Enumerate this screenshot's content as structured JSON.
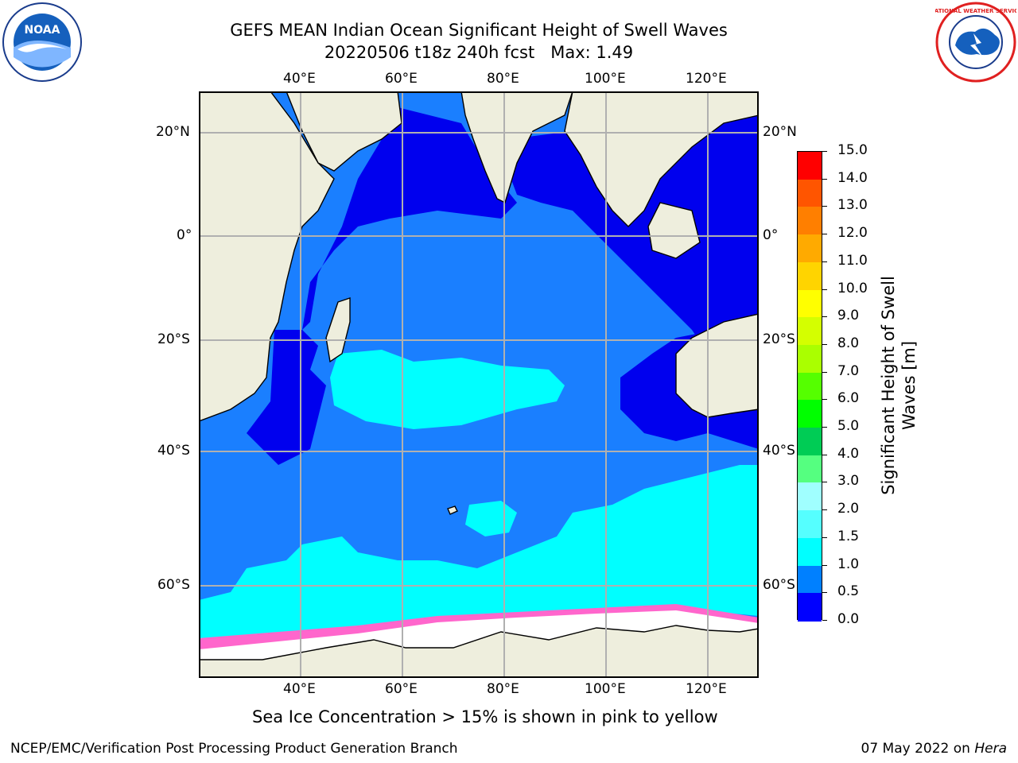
{
  "title": {
    "line1": "GEFS MEAN Indian Ocean Significant Height of Swell Waves",
    "line2": "20220506 t18z 240h fcst   Max: 1.49"
  },
  "map": {
    "lon_ticks": [
      "40°E",
      "60°E",
      "80°E",
      "100°E",
      "120°E"
    ],
    "lat_ticks": [
      "20°N",
      "0°",
      "20°S",
      "40°S",
      "60°S"
    ],
    "lon_range": [
      20,
      130
    ],
    "lat_range": [
      -75,
      27
    ]
  },
  "colorbar": {
    "label_line1": "Significant Height of Swell",
    "label_line2": "Waves [m]",
    "ticks": [
      "15.0",
      "14.0",
      "13.0",
      "12.0",
      "11.0",
      "10.0",
      "9.0",
      "8.0",
      "7.0",
      "6.0",
      "5.0",
      "4.0",
      "3.0",
      "2.0",
      "1.5",
      "1.0",
      "0.5",
      "0.0"
    ],
    "colors": [
      "#ff0000",
      "#ff2a00",
      "#ff5500",
      "#ff7f00",
      "#ffaa00",
      "#ffd400",
      "#ffff00",
      "#d4ff00",
      "#aaff00",
      "#55ff00",
      "#00ff00",
      "#00cc55",
      "#55ff80",
      "#a0ffff",
      "#55ffff",
      "#00ffff",
      "#0080ff",
      "#0000ff"
    ]
  },
  "caption": "Sea Ice Concentration > 15% is shown in pink to yellow",
  "footer": {
    "left": "NCEP/EMC/Verification Post Processing Product Generation Branch",
    "right_date": "07 May 2022 on ",
    "right_host": "Hera"
  },
  "colors": {
    "land": "#eeeedd",
    "deep_blue": "#0000ee",
    "mid_blue": "#1a7fff",
    "cyan": "#00ffff",
    "ice_white": "#ffffff",
    "ice_pink": "#ff66cc",
    "noaa_blue": "#1560bd",
    "nws_red": "#e02020"
  },
  "logos": {
    "noaa_text": "NOAA",
    "nws_text": "NATIONAL WEATHER SERVICE"
  }
}
